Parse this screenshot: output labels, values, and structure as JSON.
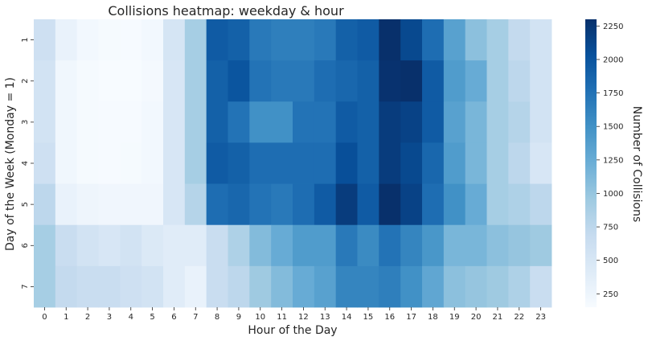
{
  "chart_data": {
    "type": "heatmap",
    "title": "Collisions heatmap: weekday & hour",
    "xlabel": "Hour of the Day",
    "ylabel": "Day of the Week (Monday = 1)",
    "colorbar_label": "Number of Collisions",
    "colormap": "Blues",
    "x": [
      "0",
      "1",
      "2",
      "3",
      "4",
      "5",
      "6",
      "7",
      "8",
      "9",
      "10",
      "11",
      "12",
      "13",
      "14",
      "15",
      "16",
      "17",
      "18",
      "19",
      "20",
      "21",
      "22",
      "23"
    ],
    "y": [
      "1",
      "2",
      "3",
      "4",
      "5",
      "6",
      "7"
    ],
    "vmin": 150,
    "vmax": 2300,
    "colorbar_ticks": [
      250,
      500,
      750,
      1000,
      1250,
      1500,
      1750,
      2000,
      2250
    ],
    "values": [
      [
        600,
        300,
        200,
        170,
        160,
        200,
        520,
        900,
        1950,
        1900,
        1700,
        1650,
        1650,
        1700,
        1900,
        1950,
        2300,
        2100,
        1800,
        1350,
        1050,
        900,
        700,
        550
      ],
      [
        550,
        220,
        170,
        150,
        150,
        180,
        500,
        900,
        1900,
        2000,
        1750,
        1700,
        1700,
        1800,
        1850,
        1900,
        2280,
        2300,
        1950,
        1400,
        1250,
        900,
        750,
        550
      ],
      [
        550,
        220,
        170,
        160,
        160,
        200,
        500,
        900,
        1900,
        1750,
        1500,
        1500,
        1750,
        1750,
        1950,
        1900,
        2200,
        2150,
        1950,
        1350,
        1150,
        900,
        800,
        550
      ],
      [
        600,
        220,
        170,
        160,
        170,
        200,
        500,
        900,
        1950,
        1900,
        1800,
        1800,
        1800,
        1800,
        2050,
        1900,
        2200,
        2100,
        1850,
        1400,
        1150,
        900,
        750,
        500
      ],
      [
        750,
        300,
        250,
        230,
        230,
        230,
        500,
        800,
        1800,
        1850,
        1750,
        1700,
        1800,
        1950,
        2200,
        1950,
        2300,
        2150,
        1800,
        1500,
        1250,
        900,
        850,
        750
      ],
      [
        900,
        650,
        550,
        500,
        550,
        450,
        400,
        400,
        650,
        850,
        1100,
        1250,
        1400,
        1400,
        1700,
        1550,
        1750,
        1600,
        1450,
        1150,
        1150,
        1050,
        1000,
        950
      ],
      [
        900,
        700,
        650,
        650,
        600,
        550,
        400,
        300,
        650,
        750,
        950,
        1100,
        1250,
        1350,
        1600,
        1600,
        1650,
        1500,
        1300,
        1050,
        1000,
        950,
        850,
        650
      ]
    ]
  }
}
